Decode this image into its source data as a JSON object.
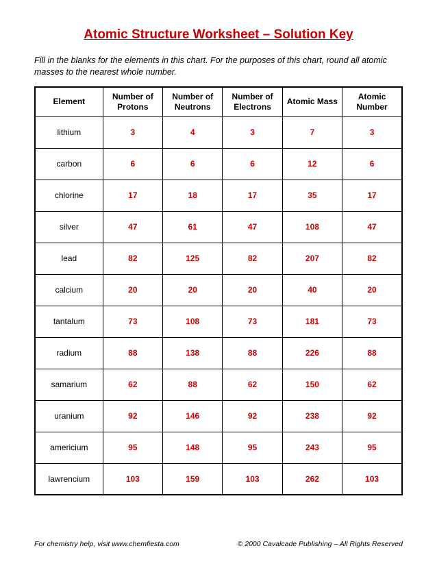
{
  "title": "Atomic Structure Worksheet – Solution Key",
  "instructions": "Fill in the blanks for the elements in this chart. For the purposes of this chart, round all atomic masses to the nearest whole number.",
  "table": {
    "columns": [
      "Element",
      "Number of Protons",
      "Number of Neutrons",
      "Number of Electrons",
      "Atomic Mass",
      "Atomic Number"
    ],
    "rows": [
      {
        "element": "lithium",
        "protons": "3",
        "neutrons": "4",
        "electrons": "3",
        "mass": "7",
        "number": "3"
      },
      {
        "element": "carbon",
        "protons": "6",
        "neutrons": "6",
        "electrons": "6",
        "mass": "12",
        "number": "6"
      },
      {
        "element": "chlorine",
        "protons": "17",
        "neutrons": "18",
        "electrons": "17",
        "mass": "35",
        "number": "17"
      },
      {
        "element": "silver",
        "protons": "47",
        "neutrons": "61",
        "electrons": "47",
        "mass": "108",
        "number": "47"
      },
      {
        "element": "lead",
        "protons": "82",
        "neutrons": "125",
        "electrons": "82",
        "mass": "207",
        "number": "82"
      },
      {
        "element": "calcium",
        "protons": "20",
        "neutrons": "20",
        "electrons": "20",
        "mass": "40",
        "number": "20"
      },
      {
        "element": "tantalum",
        "protons": "73",
        "neutrons": "108",
        "electrons": "73",
        "mass": "181",
        "number": "73"
      },
      {
        "element": "radium",
        "protons": "88",
        "neutrons": "138",
        "electrons": "88",
        "mass": "226",
        "number": "88"
      },
      {
        "element": "samarium",
        "protons": "62",
        "neutrons": "88",
        "electrons": "62",
        "mass": "150",
        "number": "62"
      },
      {
        "element": "uranium",
        "protons": "92",
        "neutrons": "146",
        "electrons": "92",
        "mass": "238",
        "number": "92"
      },
      {
        "element": "americium",
        "protons": "95",
        "neutrons": "148",
        "electrons": "95",
        "mass": "243",
        "number": "95"
      },
      {
        "element": "lawrencium",
        "protons": "103",
        "neutrons": "159",
        "electrons": "103",
        "mass": "262",
        "number": "103"
      }
    ]
  },
  "footer": {
    "left": "For chemistry help, visit www.chemfiesta.com",
    "right": "© 2000 Cavalcade Publishing – All Rights Reserved"
  },
  "colors": {
    "title_color": "#cc0000",
    "value_color": "#cc0000",
    "text_color": "#000000",
    "border_color": "#000000",
    "background": "#ffffff"
  }
}
